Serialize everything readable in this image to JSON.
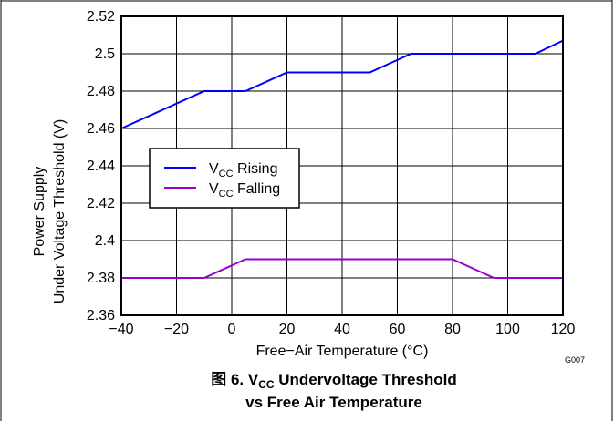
{
  "chart_data": {
    "type": "line",
    "x_label": "Free−Air Temperature (°C)",
    "y_label_lines": [
      "Power Supply",
      "Under Voltage Threshold (V)"
    ],
    "x_ticks": [
      "−40",
      "−20",
      "0",
      "20",
      "40",
      "60",
      "80",
      "100",
      "120"
    ],
    "y_ticks": [
      "2.36",
      "2.38",
      "2.4",
      "2.42",
      "2.44",
      "2.46",
      "2.48",
      "2.5",
      "2.52"
    ],
    "xlim": [
      -40,
      120
    ],
    "ylim": [
      2.36,
      2.52
    ],
    "grid": true,
    "legend_position": "center-left",
    "series": [
      {
        "name_main": "V",
        "name_sub": "CC",
        "name_rest": " Rising",
        "color": "#0000ff",
        "x": [
          -40,
          -10,
          5,
          20,
          50,
          65,
          110,
          120
        ],
        "y": [
          2.46,
          2.48,
          2.48,
          2.49,
          2.49,
          2.5,
          2.5,
          2.507
        ]
      },
      {
        "name_main": "V",
        "name_sub": "CC",
        "name_rest": " Falling",
        "color": "#9900cc",
        "x": [
          -40,
          -10,
          5,
          80,
          95,
          120
        ],
        "y": [
          2.38,
          2.38,
          2.39,
          2.39,
          2.38,
          2.38
        ]
      }
    ],
    "graph_id": "G007",
    "caption": {
      "prefix": "图 6. V",
      "sub": "CC",
      "rest": " Undervoltage Threshold",
      "line2": "vs Free Air Temperature"
    }
  }
}
